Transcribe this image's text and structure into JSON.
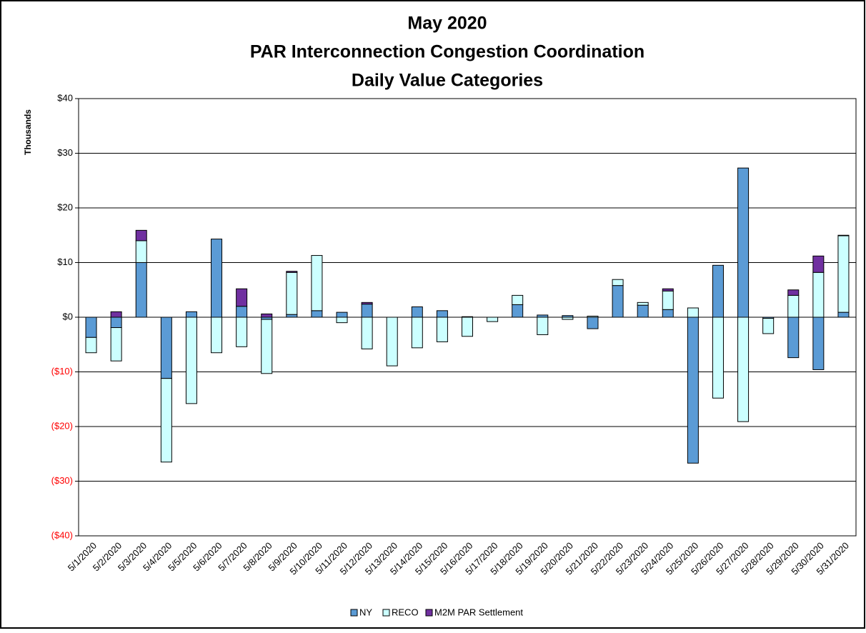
{
  "chart_data": {
    "type": "stacked_bar",
    "title": [
      "May 2020",
      "PAR Interconnection Congestion Coordination",
      "Daily Value Categories"
    ],
    "y_axis_label": "Thousands",
    "categories": [
      "5/1/2020",
      "5/2/2020",
      "5/3/2020",
      "5/4/2020",
      "5/5/2020",
      "5/6/2020",
      "5/7/2020",
      "5/8/2020",
      "5/9/2020",
      "5/10/2020",
      "5/11/2020",
      "5/12/2020",
      "5/13/2020",
      "5/14/2020",
      "5/15/2020",
      "5/16/2020",
      "5/17/2020",
      "5/18/2020",
      "5/19/2020",
      "5/20/2020",
      "5/21/2020",
      "5/22/2020",
      "5/23/2020",
      "5/24/2020",
      "5/25/2020",
      "5/26/2020",
      "5/27/2020",
      "5/28/2020",
      "5/29/2020",
      "5/30/2020",
      "5/31/2020"
    ],
    "series": [
      {
        "name": "NY",
        "color": "#5b9bd5",
        "values": [
          -3.7,
          -1.9,
          10,
          -11.2,
          1.0,
          14.3,
          2.0,
          -0.4,
          0.5,
          1.2,
          0.9,
          2.4,
          0,
          1.9,
          1.2,
          0.1,
          0,
          2.3,
          0.4,
          0.3,
          -2.1,
          5.8,
          2.2,
          1.4,
          -26.7,
          9.5,
          27.3,
          -0.2,
          -7.4,
          -9.6,
          0.9
        ]
      },
      {
        "name": "RECO",
        "color": "#ccffff",
        "values": [
          -2.8,
          -6.1,
          4,
          -15.3,
          -15.8,
          -6.5,
          -5.4,
          -9.9,
          7.7,
          10.1,
          -1.0,
          -5.8,
          -8.9,
          -5.6,
          -4.5,
          -3.5,
          -0.8,
          1.7,
          -3.2,
          -0.4,
          0.2,
          1.1,
          0.5,
          3.4,
          1.7,
          -14.8,
          -19.1,
          -2.8,
          4.0,
          8.2,
          14.0
        ]
      },
      {
        "name": "M2M PAR Settlement",
        "color": "#7030a0",
        "values": [
          0,
          1.0,
          1.9,
          0,
          0,
          0,
          3.2,
          0.6,
          0.2,
          0,
          0,
          0.3,
          0,
          0,
          0,
          0,
          0,
          0,
          0,
          0,
          0,
          0,
          0,
          0.4,
          0,
          0,
          0,
          0,
          1.0,
          3.0,
          0.1
        ]
      }
    ],
    "ylim": [
      -40,
      40
    ],
    "yticks": [
      {
        "value": -40,
        "label": "($40)"
      },
      {
        "value": -30,
        "label": "($30)"
      },
      {
        "value": -20,
        "label": "($20)"
      },
      {
        "value": -10,
        "label": "($10)"
      },
      {
        "value": 0,
        "label": "$0"
      },
      {
        "value": 10,
        "label": "$10"
      },
      {
        "value": 20,
        "label": "$20"
      },
      {
        "value": 30,
        "label": "$30"
      },
      {
        "value": 40,
        "label": "$40"
      }
    ],
    "negative_tick_color": "#ff0000",
    "grid": true,
    "legend": "bottom"
  }
}
